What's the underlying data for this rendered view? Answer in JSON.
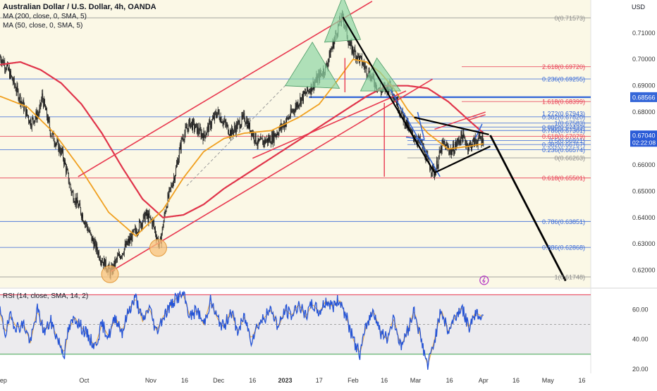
{
  "header": {
    "symbol_title": "Australian Dollar / U.S. Dollar, 4h, OANDA",
    "ma200_label": "MA (200, close, 0, SMA, 5)",
    "ma50_label": "MA (50, close, 0, SMA, 5)",
    "currency_label": "USD",
    "rsi_label": "RSI (14, close, SMA, 14, 2)"
  },
  "colors": {
    "price_bg": "#fbf8e6",
    "candles": "#1a1a1a",
    "ma200": "#e0344a",
    "ma50": "#f0a020",
    "fib_blue": "#3567d8",
    "fib_red": "#e8384f",
    "fib_gray": "#8a8a8a",
    "rsi_line": "#2554d6",
    "rsi_band": "#ecebee",
    "channel": "#e8384f",
    "triangle_fill": "#8ed6a4",
    "circle_fill": "#f8c27a"
  },
  "chart_data": {
    "type": "line",
    "price": {
      "ylim": [
        0.6135,
        0.7225
      ],
      "y_ticks": [
        "0.71000",
        "0.70000",
        "0.69000",
        "0.68000",
        "0.67000",
        "0.66000",
        "0.65000",
        "0.64000",
        "0.63000",
        "0.62000"
      ],
      "y_tick_values": [
        0.71,
        0.7,
        0.69,
        0.68,
        0.67,
        0.66,
        0.65,
        0.64,
        0.63,
        0.62
      ],
      "x_ticks": [
        {
          "label": "Sep",
          "i": 2
        },
        {
          "label": "Oct",
          "i": 124
        },
        {
          "label": "Nov",
          "i": 222
        },
        {
          "label": "16",
          "i": 272
        },
        {
          "label": "Dec",
          "i": 322
        },
        {
          "label": "16",
          "i": 372
        },
        {
          "label": "2023",
          "i": 420
        },
        {
          "label": "17",
          "i": 470
        },
        {
          "label": "Feb",
          "i": 520
        },
        {
          "label": "16",
          "i": 566
        },
        {
          "label": "Mar",
          "i": 612
        },
        {
          "label": "16",
          "i": 662
        },
        {
          "label": "Apr",
          "i": 712
        },
        {
          "label": "16",
          "i": 760
        },
        {
          "label": "May",
          "i": 807
        },
        {
          "label": "16",
          "i": 857
        }
      ],
      "anchors": [
        [
          0,
          0.701
        ],
        [
          10,
          0.697
        ],
        [
          25,
          0.688
        ],
        [
          45,
          0.676
        ],
        [
          58,
          0.68
        ],
        [
          62,
          0.686
        ],
        [
          75,
          0.672
        ],
        [
          92,
          0.664
        ],
        [
          105,
          0.65
        ],
        [
          118,
          0.643
        ],
        [
          135,
          0.632
        ],
        [
          150,
          0.624
        ],
        [
          163,
          0.619
        ],
        [
          172,
          0.624
        ],
        [
          185,
          0.629
        ],
        [
          205,
          0.637
        ],
        [
          215,
          0.641
        ],
        [
          225,
          0.638
        ],
        [
          235,
          0.629
        ],
        [
          245,
          0.645
        ],
        [
          258,
          0.657
        ],
        [
          268,
          0.67
        ],
        [
          280,
          0.676
        ],
        [
          300,
          0.671
        ],
        [
          320,
          0.68
        ],
        [
          340,
          0.672
        ],
        [
          360,
          0.678
        ],
        [
          380,
          0.668
        ],
        [
          400,
          0.67
        ],
        [
          420,
          0.676
        ],
        [
          440,
          0.684
        ],
        [
          460,
          0.69
        ],
        [
          480,
          0.697
        ],
        [
          500,
          0.714
        ],
        [
          505,
          0.716
        ],
        [
          515,
          0.705
        ],
        [
          530,
          0.7
        ],
        [
          545,
          0.694
        ],
        [
          560,
          0.688
        ],
        [
          575,
          0.69
        ],
        [
          590,
          0.68
        ],
        [
          605,
          0.672
        ],
        [
          620,
          0.668
        ],
        [
          632,
          0.66
        ],
        [
          640,
          0.657
        ],
        [
          652,
          0.668
        ],
        [
          665,
          0.665
        ],
        [
          680,
          0.671
        ],
        [
          690,
          0.667
        ],
        [
          700,
          0.669
        ],
        [
          712,
          0.67
        ]
      ],
      "ma200_anchors": [
        [
          0,
          0.698
        ],
        [
          30,
          0.699
        ],
        [
          60,
          0.696
        ],
        [
          90,
          0.691
        ],
        [
          120,
          0.683
        ],
        [
          150,
          0.672
        ],
        [
          180,
          0.659
        ],
        [
          210,
          0.647
        ],
        [
          240,
          0.64
        ],
        [
          270,
          0.641
        ],
        [
          300,
          0.645
        ],
        [
          330,
          0.651
        ],
        [
          360,
          0.656
        ],
        [
          390,
          0.661
        ],
        [
          420,
          0.666
        ],
        [
          450,
          0.671
        ],
        [
          480,
          0.676
        ],
        [
          510,
          0.681
        ],
        [
          540,
          0.686
        ],
        [
          570,
          0.69
        ],
        [
          600,
          0.69
        ],
        [
          630,
          0.689
        ],
        [
          660,
          0.684
        ],
        [
          690,
          0.677
        ],
        [
          712,
          0.672
        ]
      ],
      "ma50_anchors": [
        [
          0,
          0.686
        ],
        [
          40,
          0.682
        ],
        [
          80,
          0.672
        ],
        [
          120,
          0.658
        ],
        [
          160,
          0.642
        ],
        [
          200,
          0.633
        ],
        [
          240,
          0.643
        ],
        [
          270,
          0.655
        ],
        [
          300,
          0.665
        ],
        [
          330,
          0.67
        ],
        [
          360,
          0.672
        ],
        [
          400,
          0.673
        ],
        [
          440,
          0.678
        ],
        [
          470,
          0.683
        ],
        [
          500,
          0.693
        ],
        [
          520,
          0.7
        ],
        [
          540,
          0.699
        ],
        [
          560,
          0.695
        ],
        [
          580,
          0.689
        ],
        [
          600,
          0.681
        ],
        [
          630,
          0.672
        ],
        [
          660,
          0.666
        ],
        [
          690,
          0.667
        ],
        [
          712,
          0.668
        ]
      ],
      "current_price": "0.67040",
      "countdown": "02:22:08",
      "level_tag": "0.68566",
      "fib_labels": [
        {
          "text": "0(0.71573)",
          "v": 0.71573,
          "color": "gray"
        },
        {
          "text": "2.618(0.69720)",
          "v": 0.6972,
          "color": "red"
        },
        {
          "text": "0.236(0.69255)",
          "v": 0.69255,
          "color": "blue"
        },
        {
          "text": "1.618(0.68399)",
          "v": 0.68399,
          "color": "red"
        },
        {
          "text": "1.272(0.67943)",
          "v": 0.67943,
          "color": "blue"
        },
        {
          "text": "0.382(0.67820)",
          "v": 0.6782,
          "color": "blue"
        },
        {
          "text": "1(0.67583)",
          "v": 0.67583,
          "color": "blue"
        },
        {
          "text": "0.886(0.67433)",
          "v": 0.67433,
          "color": "blue"
        },
        {
          "text": "0.786(0.67301)",
          "v": 0.67301,
          "color": "blue"
        },
        {
          "text": "0.618(0.67079)",
          "v": 0.67079,
          "color": "red"
        },
        {
          "text": "0.5(0.66921)",
          "v": 0.66921,
          "color": "blue"
        },
        {
          "text": "0.382(0.66767)",
          "v": 0.66767,
          "color": "blue"
        },
        {
          "text": "0.236(0.66574)",
          "v": 0.66574,
          "color": "blue"
        },
        {
          "text": "0(0.66263)",
          "v": 0.66263,
          "color": "gray"
        },
        {
          "text": "0.618(0.65501)",
          "v": 0.65501,
          "color": "red"
        },
        {
          "text": "0.786(0.63851)",
          "v": 0.63851,
          "color": "blue"
        },
        {
          "text": "0.886(0.62868)",
          "v": 0.62868,
          "color": "blue"
        },
        {
          "text": "1(0.61748)",
          "v": 0.61748,
          "color": "gray"
        }
      ],
      "fib_lines": [
        {
          "v": 0.71573,
          "from": 0,
          "color": "gray"
        },
        {
          "v": 0.69255,
          "from": 0,
          "color": "blue"
        },
        {
          "v": 0.68399,
          "from": 680,
          "color": "red"
        },
        {
          "v": 0.6972,
          "from": 680,
          "color": "red"
        },
        {
          "v": 0.6782,
          "from": 0,
          "color": "blue"
        },
        {
          "v": 0.67583,
          "from": 600,
          "color": "blue"
        },
        {
          "v": 0.67433,
          "from": 600,
          "color": "blue"
        },
        {
          "v": 0.67301,
          "from": 600,
          "color": "blue"
        },
        {
          "v": 0.67079,
          "from": 0,
          "color": "red"
        },
        {
          "v": 0.66921,
          "from": 600,
          "color": "blue"
        },
        {
          "v": 0.66767,
          "from": 600,
          "color": "blue"
        },
        {
          "v": 0.66574,
          "from": 0,
          "color": "blue"
        },
        {
          "v": 0.66263,
          "from": 600,
          "color": "gray"
        },
        {
          "v": 0.65501,
          "from": 0,
          "color": "red"
        },
        {
          "v": 0.63851,
          "from": 0,
          "color": "blue"
        },
        {
          "v": 0.62868,
          "from": 0,
          "color": "blue"
        },
        {
          "v": 0.61748,
          "from": 0,
          "color": "gray"
        }
      ],
      "hline_strong": {
        "v": 0.68566,
        "from": 455
      },
      "channel_lines": [
        {
          "a": [
            115,
            0.6555
          ],
          "b": [
            548,
            0.722
          ]
        },
        {
          "a": [
            163,
            0.6195
          ],
          "b": [
            637,
            0.6925
          ]
        },
        {
          "a": [
            372,
            0.6625
          ],
          "b": [
            598,
            0.688
          ]
        }
      ],
      "trend_lines_black": [
        {
          "a": [
            505,
            0.716
          ],
          "b": [
            640,
            0.657
          ],
          "w": 2.2
        },
        {
          "a": [
            610,
            0.678
          ],
          "b": [
            720,
            0.6715
          ],
          "w": 2.2
        },
        {
          "a": [
            640,
            0.657
          ],
          "b": [
            722,
            0.667
          ],
          "w": 2.2
        },
        {
          "a": [
            722,
            0.6712
          ],
          "b": [
            833,
            0.616
          ],
          "w": 2.8
        }
      ],
      "trend_lines_blue": [
        {
          "a": [
            575,
            0.6885
          ],
          "b": [
            648,
            0.6555
          ]
        },
        {
          "a": [
            598,
            0.6705
          ],
          "b": [
            625,
            0.6695
          ]
        },
        {
          "a": [
            625,
            0.6695
          ],
          "b": [
            615,
            0.68
          ]
        },
        {
          "a": [
            710,
            0.6755
          ],
          "b": [
            700,
            0.67
          ]
        }
      ],
      "red_marks": [
        {
          "a": [
            508,
            0.7005
          ],
          "b": [
            508,
            0.6875
          ]
        },
        {
          "a": [
            566,
            0.6835
          ],
          "b": [
            566,
            0.6555
          ]
        },
        {
          "a": [
            640,
            0.6735
          ],
          "b": [
            715,
            0.68
          ]
        },
        {
          "a": [
            690,
            0.677
          ],
          "b": [
            715,
            0.679
          ]
        }
      ],
      "dashed_line": {
        "a": [
          275,
          0.652
        ],
        "b": [
          420,
          0.69
        ]
      },
      "triangles": [
        [
          [
            420,
            0.69
          ],
          [
            460,
            0.7065
          ],
          [
            500,
            0.689
          ]
        ],
        [
          [
            478,
            0.7065
          ],
          [
            505,
            0.724
          ],
          [
            531,
            0.7075
          ]
        ],
        [
          [
            531,
            0.688
          ],
          [
            555,
            0.7005
          ],
          [
            590,
            0.688
          ]
        ]
      ],
      "circles": [
        {
          "c": [
            162,
            0.6185
          ]
        },
        {
          "c": [
            233,
            0.6285
          ]
        }
      ],
      "flash_icon": {
        "c": [
          713,
          0.6162
        ]
      }
    },
    "rsi": {
      "ylim": [
        18,
        74
      ],
      "y_ticks": [
        "60.00",
        "40.00",
        "20.00"
      ],
      "y_tick_values": [
        60,
        40,
        20
      ],
      "upper": 70,
      "lower": 30,
      "mid": 50,
      "anchors": [
        [
          0,
          58
        ],
        [
          8,
          44
        ],
        [
          15,
          55
        ],
        [
          25,
          48
        ],
        [
          35,
          50
        ],
        [
          45,
          38
        ],
        [
          55,
          60
        ],
        [
          65,
          45
        ],
        [
          75,
          52
        ],
        [
          85,
          40
        ],
        [
          95,
          30
        ],
        [
          100,
          45
        ],
        [
          110,
          55
        ],
        [
          120,
          48
        ],
        [
          130,
          42
        ],
        [
          140,
          35
        ],
        [
          150,
          50
        ],
        [
          160,
          42
        ],
        [
          170,
          55
        ],
        [
          180,
          45
        ],
        [
          190,
          60
        ],
        [
          200,
          68
        ],
        [
          210,
          52
        ],
        [
          220,
          62
        ],
        [
          230,
          45
        ],
        [
          240,
          55
        ],
        [
          250,
          62
        ],
        [
          260,
          68
        ],
        [
          270,
          70
        ],
        [
          280,
          55
        ],
        [
          290,
          60
        ],
        [
          300,
          50
        ],
        [
          310,
          66
        ],
        [
          320,
          54
        ],
        [
          330,
          48
        ],
        [
          340,
          60
        ],
        [
          350,
          45
        ],
        [
          360,
          55
        ],
        [
          370,
          40
        ],
        [
          380,
          50
        ],
        [
          390,
          55
        ],
        [
          400,
          60
        ],
        [
          410,
          48
        ],
        [
          420,
          60
        ],
        [
          430,
          56
        ],
        [
          440,
          64
        ],
        [
          450,
          55
        ],
        [
          460,
          64
        ],
        [
          470,
          58
        ],
        [
          480,
          66
        ],
        [
          490,
          62
        ],
        [
          500,
          67
        ],
        [
          510,
          55
        ],
        [
          520,
          40
        ],
        [
          530,
          30
        ],
        [
          540,
          50
        ],
        [
          550,
          60
        ],
        [
          560,
          45
        ],
        [
          570,
          40
        ],
        [
          580,
          55
        ],
        [
          590,
          35
        ],
        [
          600,
          45
        ],
        [
          610,
          60
        ],
        [
          620,
          40
        ],
        [
          630,
          22
        ],
        [
          640,
          40
        ],
        [
          650,
          60
        ],
        [
          660,
          45
        ],
        [
          670,
          55
        ],
        [
          680,
          62
        ],
        [
          690,
          48
        ],
        [
          700,
          58
        ],
        [
          712,
          55
        ]
      ]
    }
  }
}
